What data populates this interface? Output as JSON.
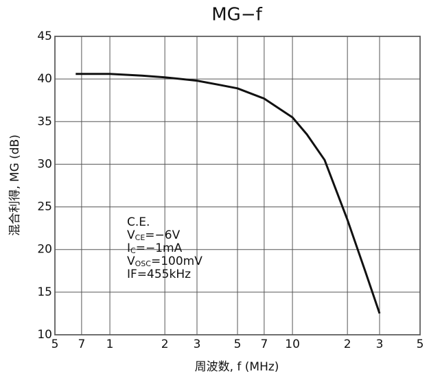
{
  "chart_data": {
    "type": "line",
    "title": "MG−f",
    "x_label": "周波数, f (MHz)",
    "y_label": "混合利得, MG (dB)",
    "x_log": true,
    "grid": true,
    "xlim": [
      0.5,
      50
    ],
    "ylim": [
      10,
      45
    ],
    "xticks": [
      {
        "value": 0.5,
        "label": "5"
      },
      {
        "value": 0.7,
        "label": "7"
      },
      1,
      2,
      3,
      5,
      7,
      10,
      {
        "value": 20,
        "label": "2"
      },
      {
        "value": 30,
        "label": "3"
      },
      {
        "value": 50,
        "label": "5"
      }
    ],
    "yticks": [
      10,
      15,
      20,
      25,
      30,
      35,
      40,
      45
    ],
    "series": [
      {
        "name": "MG",
        "color": "#111111",
        "x": [
          0.65,
          1,
          1.5,
          2,
          3,
          4,
          5,
          7,
          10,
          12,
          15,
          20,
          25,
          30
        ],
        "values": [
          40.6,
          40.6,
          40.4,
          40.2,
          39.8,
          39.3,
          38.9,
          37.7,
          35.5,
          33.5,
          30.5,
          23.5,
          17.5,
          12.5
        ]
      }
    ],
    "annotation": [
      {
        "main": "C.E."
      },
      {
        "main": "V",
        "sub": "CE",
        "rest": "=−6V"
      },
      {
        "main": "I",
        "sub": "C",
        "rest": "=−1mA"
      },
      {
        "main": "V",
        "sub": "OSC",
        "rest": "=100mV"
      },
      {
        "main": "IF=455kHz"
      }
    ]
  }
}
